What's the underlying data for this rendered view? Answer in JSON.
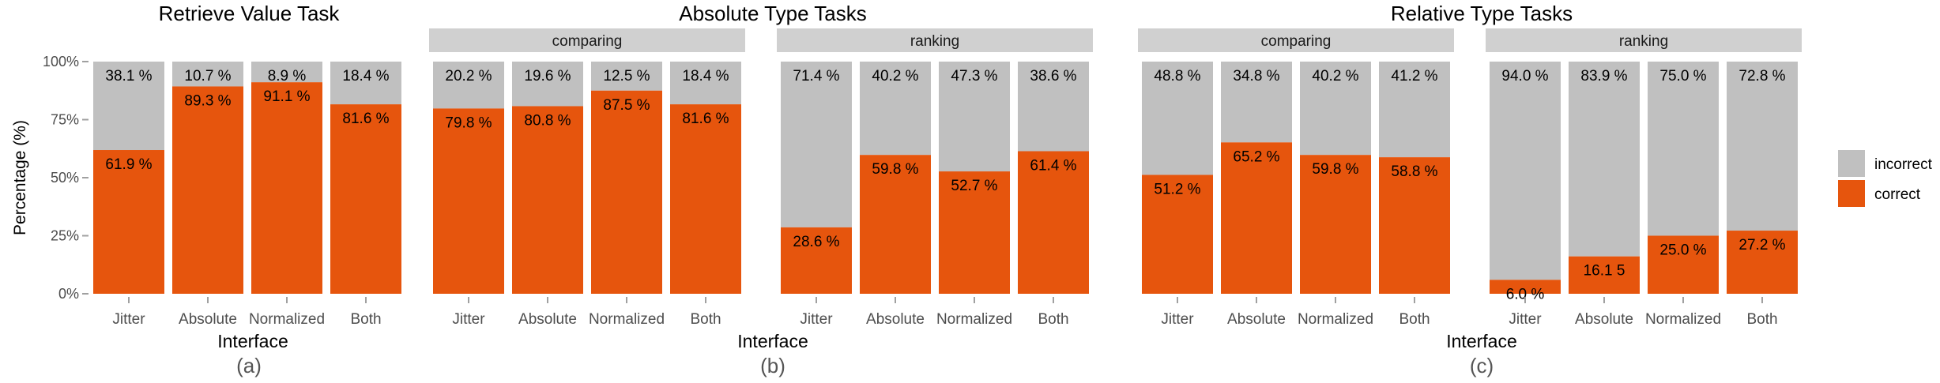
{
  "colors": {
    "correct": "#e6550d",
    "incorrect": "#c0c0c0",
    "strip": "#d0d0d0",
    "axis_text": "#4d4d4d",
    "tick": "#a0a0a0",
    "text": "#000000"
  },
  "y_axis": {
    "label": "Percentage (%)",
    "ticks": [
      "0%",
      "25%",
      "50%",
      "75%",
      "100%"
    ]
  },
  "legend": {
    "entries": [
      {
        "key": "incorrect",
        "label": "incorrect"
      },
      {
        "key": "correct",
        "label": "correct"
      }
    ]
  },
  "chart_data": [
    {
      "type": "bar",
      "stacked": true,
      "title": "Retrieve Value Task",
      "caption": "(a)",
      "xlabel": "Interface",
      "ylabel": "Percentage (%)",
      "ylim": [
        0,
        100
      ],
      "facets": [
        {
          "strip": "",
          "categories": [
            "Jitter",
            "Absolute",
            "Normalized",
            "Both"
          ],
          "series": [
            {
              "name": "correct",
              "values": [
                61.9,
                89.3,
                91.1,
                81.6
              ],
              "labels": [
                "61.9 %",
                "89.3 %",
                "91.1 %",
                "81.6 %"
              ]
            },
            {
              "name": "incorrect",
              "values": [
                38.1,
                10.7,
                8.9,
                18.4
              ],
              "labels": [
                "38.1 %",
                "10.7 %",
                "8.9 %",
                "18.4 %"
              ]
            }
          ]
        }
      ]
    },
    {
      "type": "bar",
      "stacked": true,
      "title": "Absolute Type Tasks",
      "caption": "(b)",
      "xlabel": "Interface",
      "ylim": [
        0,
        100
      ],
      "facets": [
        {
          "strip": "comparing",
          "categories": [
            "Jitter",
            "Absolute",
            "Normalized",
            "Both"
          ],
          "series": [
            {
              "name": "correct",
              "values": [
                79.8,
                80.8,
                87.5,
                81.6
              ],
              "labels": [
                "79.8 %",
                "80.8 %",
                "87.5 %",
                "81.6 %"
              ]
            },
            {
              "name": "incorrect",
              "values": [
                20.2,
                19.6,
                12.5,
                18.4
              ],
              "labels": [
                "20.2 %",
                "19.6 %",
                "12.5 %",
                "18.4 %"
              ]
            }
          ]
        },
        {
          "strip": "ranking",
          "categories": [
            "Jitter",
            "Absolute",
            "Normalized",
            "Both"
          ],
          "series": [
            {
              "name": "correct",
              "values": [
                28.6,
                59.8,
                52.7,
                61.4
              ],
              "labels": [
                "28.6 %",
                "59.8 %",
                "52.7 %",
                "61.4 %"
              ]
            },
            {
              "name": "incorrect",
              "values": [
                71.4,
                40.2,
                47.3,
                38.6
              ],
              "labels": [
                "71.4 %",
                "40.2 %",
                "47.3 %",
                "38.6 %"
              ]
            }
          ]
        }
      ]
    },
    {
      "type": "bar",
      "stacked": true,
      "title": "Relative Type Tasks",
      "caption": "(c)",
      "xlabel": "Interface",
      "ylim": [
        0,
        100
      ],
      "facets": [
        {
          "strip": "comparing",
          "categories": [
            "Jitter",
            "Absolute",
            "Normalized",
            "Both"
          ],
          "series": [
            {
              "name": "correct",
              "values": [
                51.2,
                65.2,
                59.8,
                58.8
              ],
              "labels": [
                "51.2 %",
                "65.2 %",
                "59.8 %",
                "58.8 %"
              ]
            },
            {
              "name": "incorrect",
              "values": [
                48.8,
                34.8,
                40.2,
                41.2
              ],
              "labels": [
                "48.8 %",
                "34.8 %",
                "40.2 %",
                "41.2 %"
              ]
            }
          ]
        },
        {
          "strip": "ranking",
          "categories": [
            "Jitter",
            "Absolute",
            "Normalized",
            "Both"
          ],
          "series": [
            {
              "name": "correct",
              "values": [
                6.0,
                16.1,
                25.0,
                27.2
              ],
              "labels": [
                "6.0 %",
                "16.1 5",
                "25.0 %",
                "27.2 %"
              ]
            },
            {
              "name": "incorrect",
              "values": [
                94.0,
                83.9,
                75.0,
                72.8
              ],
              "labels": [
                "94.0 %",
                "83.9 %",
                "75.0 %",
                "72.8 %"
              ]
            }
          ]
        }
      ]
    }
  ]
}
